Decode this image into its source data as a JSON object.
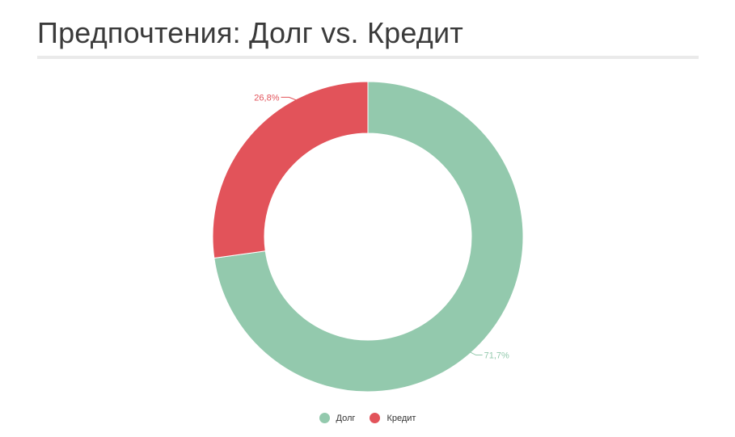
{
  "header": {
    "title": "Предпочтения: Долг vs. Кредит"
  },
  "chart_data": {
    "type": "pie",
    "donut": true,
    "title": "Предпочтения: Долг vs. Кредит",
    "legend_position": "bottom",
    "categories": [
      "Долг",
      "Кредит"
    ],
    "values": [
      71.7,
      26.8
    ],
    "labels": [
      "71,7%",
      "26,8%"
    ],
    "colors": [
      "#93c9ad",
      "#e2535a"
    ]
  }
}
